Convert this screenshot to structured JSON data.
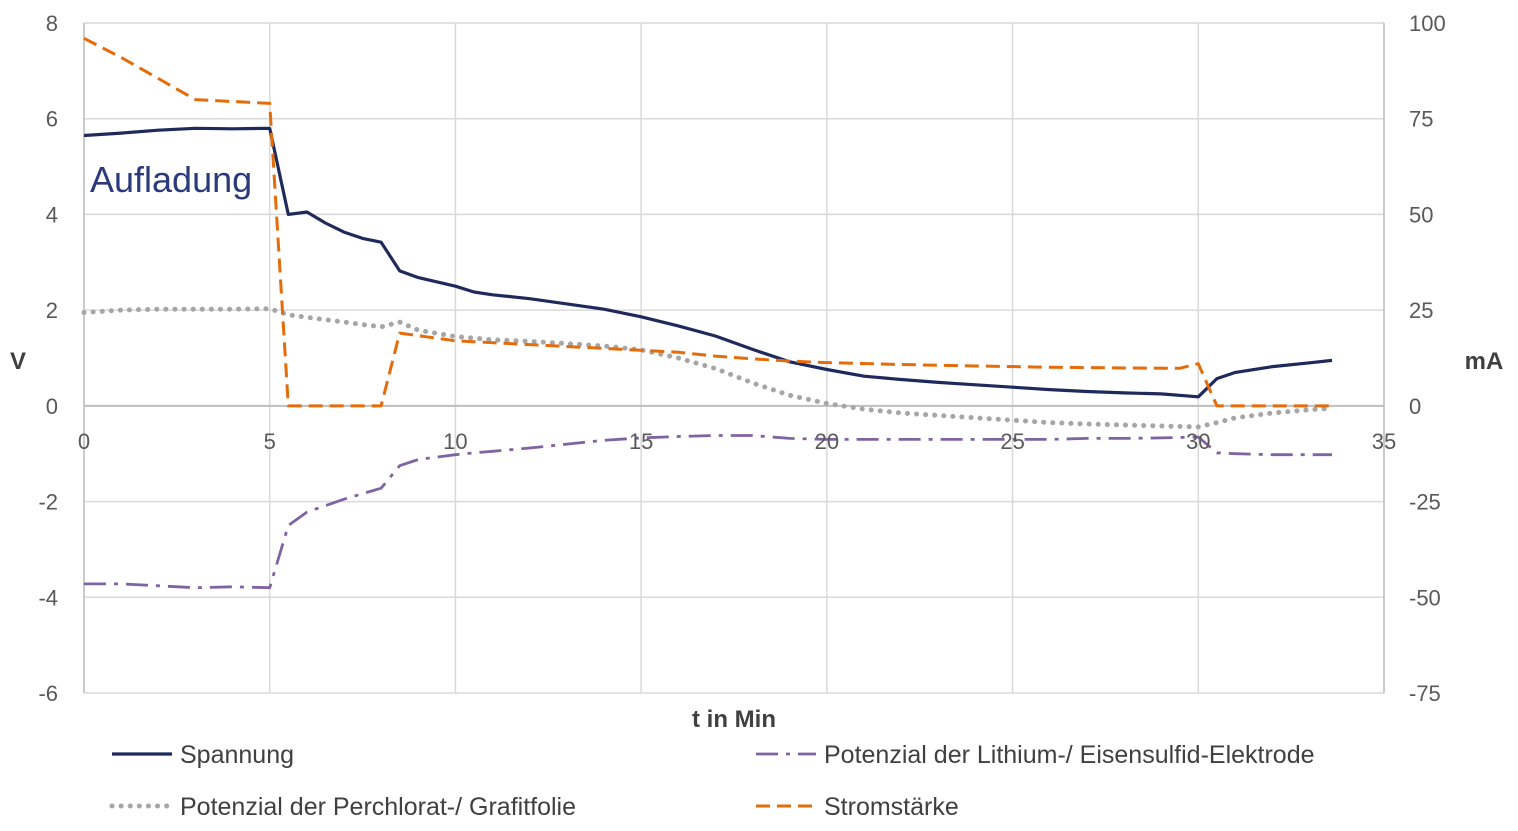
{
  "chart_data": {
    "type": "line",
    "title": "",
    "annotation": "Aufladung",
    "xlabel": "t in Min",
    "ylabel_left": "V",
    "ylabel_right": "mA",
    "xlim": [
      0,
      35
    ],
    "ylim_left": [
      -6,
      8
    ],
    "ylim_right": [
      -75,
      100
    ],
    "x_ticks": [
      0,
      5,
      10,
      15,
      20,
      25,
      30,
      35
    ],
    "y_left_ticks": [
      -6,
      -4,
      -2,
      0,
      2,
      4,
      6,
      8
    ],
    "y_right_ticks": [
      -75,
      -50,
      -25,
      0,
      25,
      50,
      75,
      100
    ],
    "grid": true,
    "legend_position": "bottom",
    "series": [
      {
        "name": "Spannung",
        "axis": "left",
        "color": "#1f2a5c",
        "style": "solid",
        "points": [
          [
            0,
            5.65
          ],
          [
            1,
            5.7
          ],
          [
            2,
            5.76
          ],
          [
            3,
            5.8
          ],
          [
            4,
            5.79
          ],
          [
            5,
            5.8
          ],
          [
            5.5,
            4.0
          ],
          [
            6,
            4.05
          ],
          [
            6.5,
            3.82
          ],
          [
            7,
            3.63
          ],
          [
            7.5,
            3.5
          ],
          [
            8,
            3.42
          ],
          [
            8.5,
            2.82
          ],
          [
            9,
            2.68
          ],
          [
            10,
            2.5
          ],
          [
            10.5,
            2.38
          ],
          [
            11,
            2.32
          ],
          [
            12,
            2.24
          ],
          [
            13,
            2.13
          ],
          [
            14,
            2.02
          ],
          [
            15,
            1.86
          ],
          [
            16,
            1.67
          ],
          [
            17,
            1.46
          ],
          [
            18,
            1.18
          ],
          [
            19,
            0.92
          ],
          [
            20,
            0.76
          ],
          [
            21,
            0.62
          ],
          [
            22,
            0.55
          ],
          [
            23,
            0.49
          ],
          [
            24,
            0.44
          ],
          [
            25,
            0.39
          ],
          [
            26,
            0.34
          ],
          [
            27,
            0.3
          ],
          [
            28,
            0.27
          ],
          [
            29,
            0.25
          ],
          [
            30,
            0.19
          ],
          [
            30.5,
            0.57
          ],
          [
            31,
            0.7
          ],
          [
            32,
            0.82
          ],
          [
            33,
            0.9
          ],
          [
            33.6,
            0.95
          ]
        ]
      },
      {
        "name": "Potenzial der Lithium-/ Eisensulfid-Elektrode",
        "axis": "left",
        "color": "#8064a2",
        "style": "dashdot",
        "points": [
          [
            0,
            -3.72
          ],
          [
            1,
            -3.72
          ],
          [
            2,
            -3.76
          ],
          [
            3,
            -3.8
          ],
          [
            4,
            -3.78
          ],
          [
            5,
            -3.8
          ],
          [
            5.5,
            -2.5
          ],
          [
            6,
            -2.22
          ],
          [
            7,
            -1.95
          ],
          [
            8,
            -1.72
          ],
          [
            8.5,
            -1.25
          ],
          [
            9,
            -1.12
          ],
          [
            10,
            -1.02
          ],
          [
            10.5,
            -0.98
          ],
          [
            11,
            -0.95
          ],
          [
            12,
            -0.88
          ],
          [
            13,
            -0.8
          ],
          [
            14,
            -0.72
          ],
          [
            15,
            -0.67
          ],
          [
            16,
            -0.64
          ],
          [
            17,
            -0.62
          ],
          [
            18,
            -0.62
          ],
          [
            19,
            -0.68
          ],
          [
            20,
            -0.7
          ],
          [
            21,
            -0.7
          ],
          [
            22,
            -0.7
          ],
          [
            23,
            -0.7
          ],
          [
            24,
            -0.7
          ],
          [
            25,
            -0.7
          ],
          [
            26,
            -0.7
          ],
          [
            27,
            -0.68
          ],
          [
            28,
            -0.68
          ],
          [
            29,
            -0.67
          ],
          [
            30,
            -0.65
          ],
          [
            30.5,
            -0.98
          ],
          [
            31,
            -1.0
          ],
          [
            32,
            -1.02
          ],
          [
            33,
            -1.02
          ],
          [
            33.6,
            -1.02
          ]
        ]
      },
      {
        "name": "Potenzial der Perchlorat-/ Grafitfolie",
        "axis": "left",
        "color": "#a6a6a6",
        "style": "dotted",
        "points": [
          [
            0,
            1.95
          ],
          [
            1,
            2.0
          ],
          [
            2,
            2.02
          ],
          [
            3,
            2.02
          ],
          [
            4,
            2.02
          ],
          [
            5,
            2.03
          ],
          [
            5.5,
            1.9
          ],
          [
            6,
            1.85
          ],
          [
            7,
            1.75
          ],
          [
            8,
            1.65
          ],
          [
            8.5,
            1.75
          ],
          [
            9,
            1.58
          ],
          [
            10,
            1.45
          ],
          [
            11,
            1.38
          ],
          [
            12,
            1.35
          ],
          [
            13,
            1.3
          ],
          [
            14,
            1.25
          ],
          [
            15,
            1.17
          ],
          [
            16,
            1.0
          ],
          [
            17,
            0.78
          ],
          [
            18,
            0.48
          ],
          [
            19,
            0.22
          ],
          [
            20,
            0.05
          ],
          [
            21,
            -0.07
          ],
          [
            22,
            -0.15
          ],
          [
            23,
            -0.2
          ],
          [
            24,
            -0.25
          ],
          [
            25,
            -0.3
          ],
          [
            26,
            -0.35
          ],
          [
            27,
            -0.38
          ],
          [
            28,
            -0.4
          ],
          [
            29,
            -0.42
          ],
          [
            30,
            -0.44
          ],
          [
            30.5,
            -0.35
          ],
          [
            31,
            -0.25
          ],
          [
            32,
            -0.15
          ],
          [
            33,
            -0.08
          ],
          [
            33.6,
            -0.05
          ]
        ]
      },
      {
        "name": "Stromstärke",
        "axis": "right",
        "color": "#e46c0a",
        "style": "dashed",
        "points": [
          [
            0,
            96
          ],
          [
            1,
            91
          ],
          [
            2,
            85.5
          ],
          [
            3,
            80
          ],
          [
            4,
            79.5
          ],
          [
            5,
            79
          ],
          [
            5.5,
            0
          ],
          [
            8,
            0
          ],
          [
            8.5,
            19
          ],
          [
            10,
            17
          ],
          [
            12,
            16
          ],
          [
            14,
            15
          ],
          [
            15,
            14.5
          ],
          [
            16,
            14
          ],
          [
            17,
            13
          ],
          [
            18,
            12.3
          ],
          [
            19,
            11.7
          ],
          [
            20,
            11.3
          ],
          [
            22,
            10.8
          ],
          [
            24,
            10.4
          ],
          [
            26,
            10.1
          ],
          [
            28,
            9.9
          ],
          [
            29.5,
            9.8
          ],
          [
            30,
            11
          ],
          [
            30.5,
            0
          ],
          [
            33.6,
            0
          ]
        ]
      }
    ]
  }
}
